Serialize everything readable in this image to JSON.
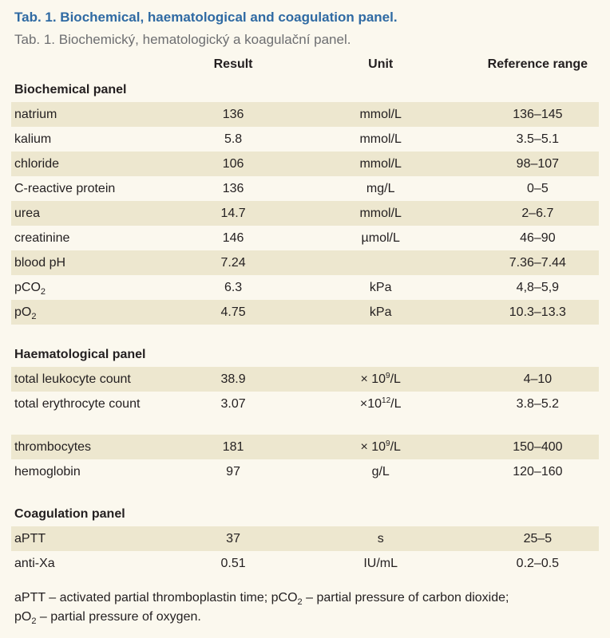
{
  "title_en": "Tab. 1. Biochemical, haematological and coagulation panel.",
  "title_cz": "Tab. 1. Biochemický, hematologický a koagulační panel.",
  "columns": {
    "result": "Result",
    "unit": "Unit",
    "reference": "Reference range"
  },
  "sections": [
    {
      "name": "Biochemical panel",
      "rows": [
        {
          "param": "natrium",
          "result": "136",
          "unit": "mmol/L",
          "ref": "136–145"
        },
        {
          "param": "kalium",
          "result": "5.8",
          "unit": "mmol/L",
          "ref": "3.5–5.1"
        },
        {
          "param": "chloride",
          "result": "106",
          "unit": "mmol/L",
          "ref": "98–107"
        },
        {
          "param": "C-reactive protein",
          "result": "136",
          "unit": "mg/L",
          "ref": "0–5"
        },
        {
          "param": "urea",
          "result": "14.7",
          "unit": "mmol/L",
          "ref": "2–6.7"
        },
        {
          "param": "creatinine",
          "result": "146",
          "unit": "µmol/L",
          "ref": "46–90"
        },
        {
          "param": "blood pH",
          "result": "7.24",
          "unit": "",
          "ref": "7.36–7.44"
        },
        {
          "param_main": "pCO",
          "param_sub": "2",
          "result": "6.3",
          "unit": "kPa",
          "ref": "4,8–5,9"
        },
        {
          "param_main": "pO",
          "param_sub": "2",
          "result": "4.75",
          "unit": "kPa",
          "ref": "10.3–13.3"
        }
      ]
    },
    {
      "name": "Haematological panel",
      "rows": [
        {
          "param": "total leukocyte count",
          "result": "38.9",
          "unit_pre": "× 10",
          "unit_sup": "9",
          "unit_post": "/L",
          "ref": "4–10"
        },
        {
          "param": "total erythrocyte count",
          "result": "3.07",
          "unit_pre": "×10",
          "unit_sup": "12",
          "unit_post": "/L",
          "ref": "3.8–5.2"
        },
        {
          "param": "thrombocytes",
          "result": "181",
          "unit_pre": "× 10",
          "unit_sup": "9",
          "unit_post": "/L",
          "ref": "150–400"
        },
        {
          "param": "hemoglobin",
          "result": "97",
          "unit": "g/L",
          "ref": "120–160"
        }
      ]
    },
    {
      "name": "Coagulation panel",
      "rows": [
        {
          "param": "aPTT",
          "result": "37",
          "unit": "s",
          "ref": "25–5"
        },
        {
          "param": "anti-Xa",
          "result": "0.51",
          "unit": "IU/mL",
          "ref": "0.2–0.5"
        }
      ]
    }
  ],
  "footnote": {
    "part1": "aPTT – activated partial thromboplastin time; pCO",
    "sub1": "2",
    "part2": " – partial pressure of carbon dioxide;",
    "part3": "pO",
    "sub2": "2",
    "part4": " – partial pressure of oxygen."
  }
}
